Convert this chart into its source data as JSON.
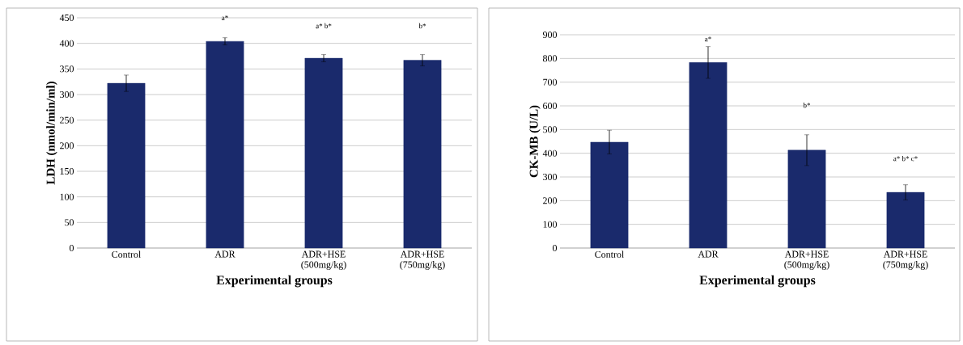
{
  "chart_data": [
    {
      "type": "bar",
      "xlabel": "Experimental groups",
      "ylabel": "LDH (nmol/min/ml)",
      "categories": [
        "Control",
        "ADR",
        "ADR+HSE (500mg/kg)",
        "ADR+HSE (750mg/kg)"
      ],
      "values": [
        322,
        404,
        371,
        367
      ],
      "errors": [
        16,
        7,
        7,
        11
      ],
      "color": "#1a2a6c",
      "ylim": [
        0,
        450
      ],
      "yticks": [
        0,
        50,
        100,
        150,
        200,
        250,
        300,
        350,
        400,
        450
      ],
      "grid": "y",
      "annotations": [
        "a*",
        "a* b*",
        "b*"
      ]
    },
    {
      "type": "bar",
      "xlabel": "Experimental groups",
      "ylabel": "CK-MB (U/L)",
      "categories": [
        "Control",
        "ADR",
        "ADR+HSE (500mg/kg)",
        "ADR+HSE (750mg/kg)"
      ],
      "values": [
        447,
        783,
        413,
        235
      ],
      "errors": [
        50,
        67,
        65,
        32
      ],
      "color": "#1a2a6c",
      "ylim": [
        0,
        900
      ],
      "yticks": [
        0,
        100,
        200,
        300,
        400,
        500,
        600,
        700,
        800,
        900
      ],
      "grid": "y",
      "annotations": [
        "a*",
        "b*",
        "a* b* c*"
      ]
    }
  ]
}
